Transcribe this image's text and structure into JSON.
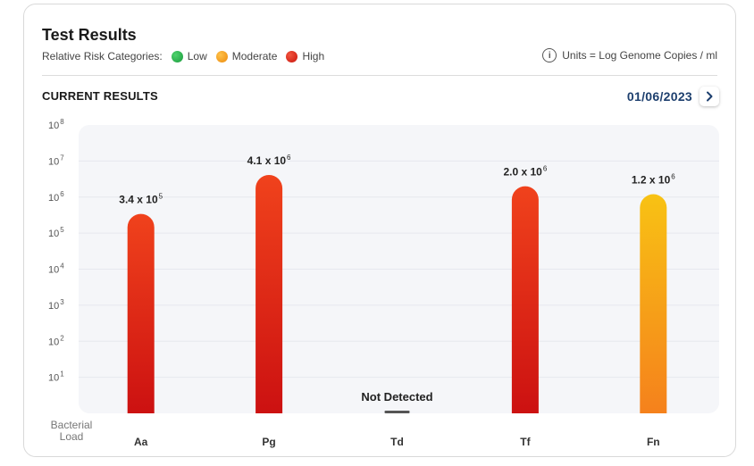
{
  "header": {
    "title": "Test Results",
    "legend_label": "Relative Risk Categories:",
    "units": "Units = Log Genome Copies / ml"
  },
  "legend": [
    {
      "label": "Low",
      "color": "#22b24c"
    },
    {
      "label": "Moderate",
      "color": "#f5a11c"
    },
    {
      "label": "High",
      "color": "#e12a1a"
    }
  ],
  "section": {
    "title": "CURRENT RESULTS",
    "date": "01/06/2023",
    "next_icon": "chevron-right-icon"
  },
  "chart_data": {
    "type": "bar",
    "ylabel": "Bacterial Load",
    "yscale": "log",
    "ylim": [
      1,
      100000000
    ],
    "yticks": [
      {
        "base": "10",
        "exp": "8"
      },
      {
        "base": "10",
        "exp": "7"
      },
      {
        "base": "10",
        "exp": "6"
      },
      {
        "base": "10",
        "exp": "5"
      },
      {
        "base": "10",
        "exp": "4"
      },
      {
        "base": "10",
        "exp": "3"
      },
      {
        "base": "10",
        "exp": "2"
      },
      {
        "base": "10",
        "exp": "1"
      }
    ],
    "grid": true,
    "categories": [
      "Aa",
      "Pg",
      "Td",
      "Tf",
      "Fn"
    ],
    "bars": [
      {
        "category": "Aa",
        "value": 340000,
        "label_base": "3.4 x 10",
        "label_exp": "5",
        "risk": "High"
      },
      {
        "category": "Pg",
        "value": 4100000,
        "label_base": "4.1 x 10",
        "label_exp": "6",
        "risk": "High"
      },
      {
        "category": "Td",
        "value": null,
        "label_text": "Not Detected",
        "risk": ""
      },
      {
        "category": "Tf",
        "value": 2000000,
        "label_base": "2.0 x 10",
        "label_exp": "6",
        "risk": "High"
      },
      {
        "category": "Fn",
        "value": 1200000,
        "label_base": "1.2 x 10",
        "label_exp": "6",
        "risk": "Moderate"
      }
    ]
  }
}
